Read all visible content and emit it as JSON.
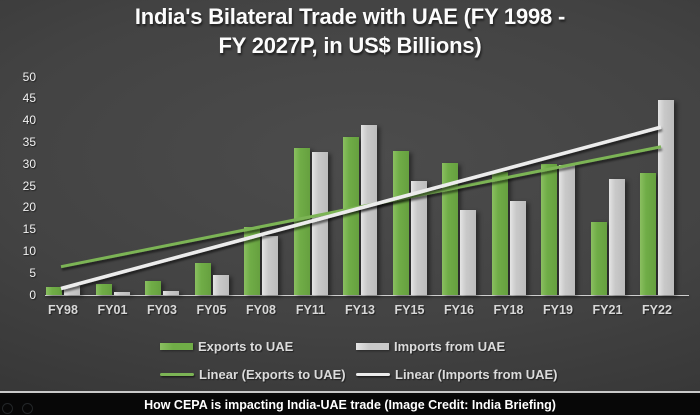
{
  "title": {
    "line1": "India's Bilateral Trade with UAE (FY 1998 -",
    "line2": "FY 2027P, in US$ Billions)"
  },
  "chart_data": {
    "type": "bar",
    "title": "India's Bilateral Trade with UAE (FY 1998 - FY 2027P, in US$ Billions)",
    "categories": [
      "FY98",
      "FY01",
      "FY03",
      "FY05",
      "FY08",
      "FY11",
      "FY13",
      "FY15",
      "FY16",
      "FY18",
      "FY19",
      "FY21",
      "FY22"
    ],
    "series": [
      {
        "name": "Exports to UAE",
        "color": "#70AD47",
        "values": [
          1.8,
          2.6,
          3.3,
          7.3,
          15.6,
          33.8,
          36.3,
          33.0,
          30.3,
          28.1,
          30.1,
          16.7,
          28.0
        ]
      },
      {
        "name": "Imports from UAE",
        "color": "#C9C9C9",
        "values": [
          2.1,
          0.7,
          1.0,
          4.6,
          13.5,
          32.8,
          39.1,
          26.1,
          19.4,
          21.5,
          29.8,
          26.6,
          44.8
        ]
      }
    ],
    "trendlines": [
      {
        "name": "Linear (Exports to UAE)",
        "color": "#7CB455",
        "start_value": 6.5,
        "end_value": 34.0
      },
      {
        "name": "Linear (Imports from UAE)",
        "color": "#ECECEC",
        "start_value": 1.5,
        "end_value": 38.5
      }
    ],
    "y_axis": {
      "min": 0,
      "max": 50,
      "step": 5
    },
    "grid": false,
    "legend_position": "bottom"
  },
  "caption": {
    "text": "How CEPA is impacting India-UAE trade (Image Credit: India Briefing)"
  }
}
